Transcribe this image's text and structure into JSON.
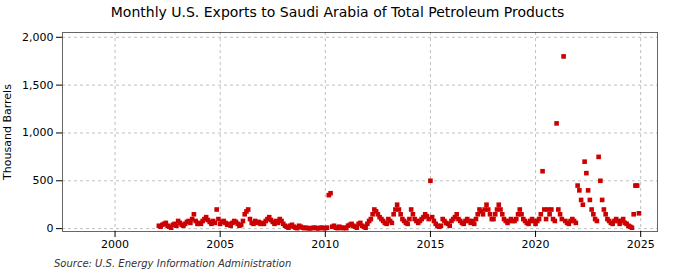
{
  "chart_data": {
    "type": "scatter",
    "title": "Monthly U.S. Exports to Saudi Arabia of Total Petroleum Products",
    "ylabel": "Thousand Barrels",
    "source": "Source: U.S. Energy Information Administration",
    "color": "#cc0000",
    "marker": "square",
    "grid": true,
    "xlim": [
      1997.5,
      2025.8
    ],
    "xticks": [
      2000,
      2005,
      2010,
      2015,
      2020,
      2025
    ],
    "ylim": [
      -30,
      2050
    ],
    "yticks": [
      0,
      500,
      {
        "value": 1000,
        "label": "1,000"
      },
      {
        "value": 1500,
        "label": "1,500"
      },
      {
        "value": 2000,
        "label": "2,000"
      }
    ],
    "x": [
      2002.083,
      2002.167,
      2002.25,
      2002.333,
      2002.417,
      2002.5,
      2002.583,
      2002.667,
      2002.75,
      2002.833,
      2002.917,
      2003.0,
      2003.083,
      2003.167,
      2003.25,
      2003.333,
      2003.417,
      2003.5,
      2003.583,
      2003.667,
      2003.75,
      2003.833,
      2003.917,
      2004.0,
      2004.083,
      2004.167,
      2004.25,
      2004.333,
      2004.417,
      2004.5,
      2004.583,
      2004.667,
      2004.75,
      2004.833,
      2004.917,
      2005.0,
      2005.083,
      2005.167,
      2005.25,
      2005.333,
      2005.417,
      2005.5,
      2005.583,
      2005.667,
      2005.75,
      2005.833,
      2005.917,
      2006.0,
      2006.083,
      2006.167,
      2006.25,
      2006.333,
      2006.417,
      2006.5,
      2006.583,
      2006.667,
      2006.75,
      2006.833,
      2006.917,
      2007.0,
      2007.083,
      2007.167,
      2007.25,
      2007.333,
      2007.417,
      2007.5,
      2007.583,
      2007.667,
      2007.75,
      2007.833,
      2007.917,
      2008.0,
      2008.083,
      2008.167,
      2008.25,
      2008.333,
      2008.417,
      2008.5,
      2008.583,
      2008.667,
      2008.75,
      2008.833,
      2008.917,
      2009.0,
      2009.083,
      2009.167,
      2009.25,
      2009.333,
      2009.417,
      2009.5,
      2009.583,
      2009.667,
      2009.75,
      2009.833,
      2009.917,
      2010.0,
      2010.083,
      2010.167,
      2010.25,
      2010.333,
      2010.417,
      2010.5,
      2010.583,
      2010.667,
      2010.75,
      2010.833,
      2010.917,
      2011.0,
      2011.083,
      2011.167,
      2011.25,
      2011.333,
      2011.417,
      2011.5,
      2011.583,
      2011.667,
      2011.75,
      2011.833,
      2011.917,
      2012.0,
      2012.083,
      2012.167,
      2012.25,
      2012.333,
      2012.417,
      2012.5,
      2012.583,
      2012.667,
      2012.75,
      2012.833,
      2012.917,
      2013.0,
      2013.083,
      2013.167,
      2013.25,
      2013.333,
      2013.417,
      2013.5,
      2013.583,
      2013.667,
      2013.75,
      2013.833,
      2013.917,
      2014.0,
      2014.083,
      2014.167,
      2014.25,
      2014.333,
      2014.417,
      2014.5,
      2014.583,
      2014.667,
      2014.75,
      2014.833,
      2014.917,
      2015.0,
      2015.083,
      2015.167,
      2015.25,
      2015.333,
      2015.417,
      2015.5,
      2015.583,
      2015.667,
      2015.75,
      2015.833,
      2015.917,
      2016.0,
      2016.083,
      2016.167,
      2016.25,
      2016.333,
      2016.417,
      2016.5,
      2016.583,
      2016.667,
      2016.75,
      2016.833,
      2016.917,
      2017.0,
      2017.083,
      2017.167,
      2017.25,
      2017.333,
      2017.417,
      2017.5,
      2017.583,
      2017.667,
      2017.75,
      2017.833,
      2017.917,
      2018.0,
      2018.083,
      2018.167,
      2018.25,
      2018.333,
      2018.417,
      2018.5,
      2018.583,
      2018.667,
      2018.75,
      2018.833,
      2018.917,
      2019.0,
      2019.083,
      2019.167,
      2019.25,
      2019.333,
      2019.417,
      2019.5,
      2019.583,
      2019.667,
      2019.75,
      2019.833,
      2019.917,
      2020.0,
      2020.083,
      2020.167,
      2020.25,
      2020.333,
      2020.417,
      2020.5,
      2020.583,
      2020.667,
      2020.75,
      2020.833,
      2020.917,
      2021.0,
      2021.083,
      2021.167,
      2021.25,
      2021.333,
      2021.417,
      2021.5,
      2021.583,
      2021.667,
      2021.75,
      2021.833,
      2021.917,
      2022.0,
      2022.083,
      2022.167,
      2022.25,
      2022.333,
      2022.417,
      2022.5,
      2022.583,
      2022.667,
      2022.75,
      2022.833,
      2022.917,
      2023.0,
      2023.083,
      2023.167,
      2023.25,
      2023.333,
      2023.417,
      2023.5,
      2023.583,
      2023.667,
      2023.75,
      2023.833,
      2023.917,
      2024.0,
      2024.083,
      2024.167,
      2024.25,
      2024.333,
      2024.417,
      2024.5,
      2024.583,
      2024.667,
      2024.75,
      2024.833,
      2024.917
    ],
    "values": [
      30,
      20,
      40,
      50,
      60,
      30,
      20,
      10,
      40,
      50,
      30,
      80,
      60,
      40,
      30,
      50,
      70,
      80,
      60,
      100,
      150,
      80,
      50,
      60,
      50,
      80,
      100,
      120,
      90,
      70,
      50,
      80,
      60,
      200,
      100,
      50,
      70,
      80,
      60,
      40,
      50,
      30,
      60,
      80,
      70,
      50,
      30,
      40,
      80,
      150,
      180,
      200,
      100,
      60,
      50,
      80,
      60,
      70,
      50,
      60,
      50,
      80,
      100,
      120,
      90,
      70,
      50,
      80,
      60,
      100,
      80,
      50,
      30,
      20,
      10,
      30,
      40,
      20,
      10,
      5,
      30,
      20,
      10,
      5,
      10,
      5,
      3,
      5,
      8,
      10,
      5,
      3,
      8,
      10,
      5,
      5,
      10,
      350,
      370,
      20,
      30,
      10,
      5,
      20,
      10,
      5,
      10,
      5,
      30,
      40,
      50,
      30,
      20,
      10,
      50,
      60,
      30,
      20,
      10,
      50,
      80,
      100,
      150,
      200,
      180,
      150,
      120,
      100,
      80,
      60,
      50,
      100,
      80,
      60,
      150,
      200,
      250,
      200,
      150,
      100,
      80,
      60,
      50,
      100,
      200,
      150,
      100,
      80,
      60,
      80,
      100,
      120,
      150,
      130,
      100,
      500,
      120,
      80,
      50,
      30,
      20,
      30,
      100,
      80,
      60,
      50,
      30,
      80,
      100,
      120,
      150,
      100,
      80,
      60,
      50,
      80,
      100,
      80,
      60,
      80,
      50,
      100,
      150,
      200,
      180,
      150,
      200,
      250,
      200,
      150,
      100,
      100,
      150,
      200,
      250,
      200,
      150,
      100,
      80,
      60,
      80,
      100,
      80,
      80,
      100,
      150,
      200,
      150,
      100,
      80,
      60,
      50,
      80,
      100,
      80,
      50,
      80,
      100,
      150,
      600,
      200,
      100,
      200,
      150,
      200,
      100,
      80,
      1100,
      200,
      150,
      100,
      1800,
      80,
      60,
      50,
      80,
      100,
      80,
      60,
      450,
      400,
      300,
      250,
      700,
      580,
      400,
      300,
      200,
      150,
      100,
      80,
      750,
      500,
      300,
      200,
      150,
      100,
      80,
      60,
      50,
      80,
      100,
      80,
      50,
      80,
      100,
      60,
      50,
      30,
      20,
      10,
      150,
      450,
      450,
      160
    ]
  }
}
